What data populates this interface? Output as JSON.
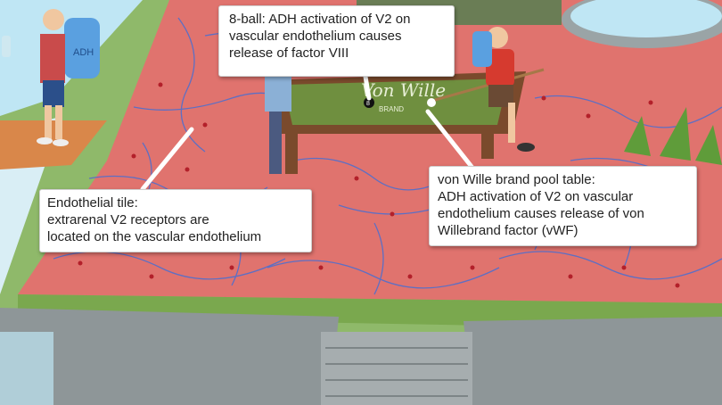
{
  "scene": {
    "sign_text": "Von Wille",
    "sign_subtext": "BRAND",
    "bottle_label": "ADH",
    "ball_number": "8",
    "colors": {
      "floor": "#e0736e",
      "floor_lines": "#5d6fc4",
      "grass": "#8fb96a",
      "table_felt": "#6f8f3f",
      "table_wood": "#7a4a2c",
      "wall": "#8e9698"
    }
  },
  "callouts": {
    "eight_ball": {
      "lines": [
        "8-ball: ADH activation of V2 on",
        "vascular endothelium causes",
        "release of factor VIII"
      ]
    },
    "endothelial_tile": {
      "lines": [
        "Endothelial tile:",
        "extrarenal V2 receptors are",
        "located on the vascular endothelium"
      ]
    },
    "pool_table": {
      "lines": [
        "von Wille brand pool table:",
        "ADH activation of V2 on vascular",
        "endothelium causes release of von",
        "Willebrand factor (vWF)"
      ]
    }
  }
}
